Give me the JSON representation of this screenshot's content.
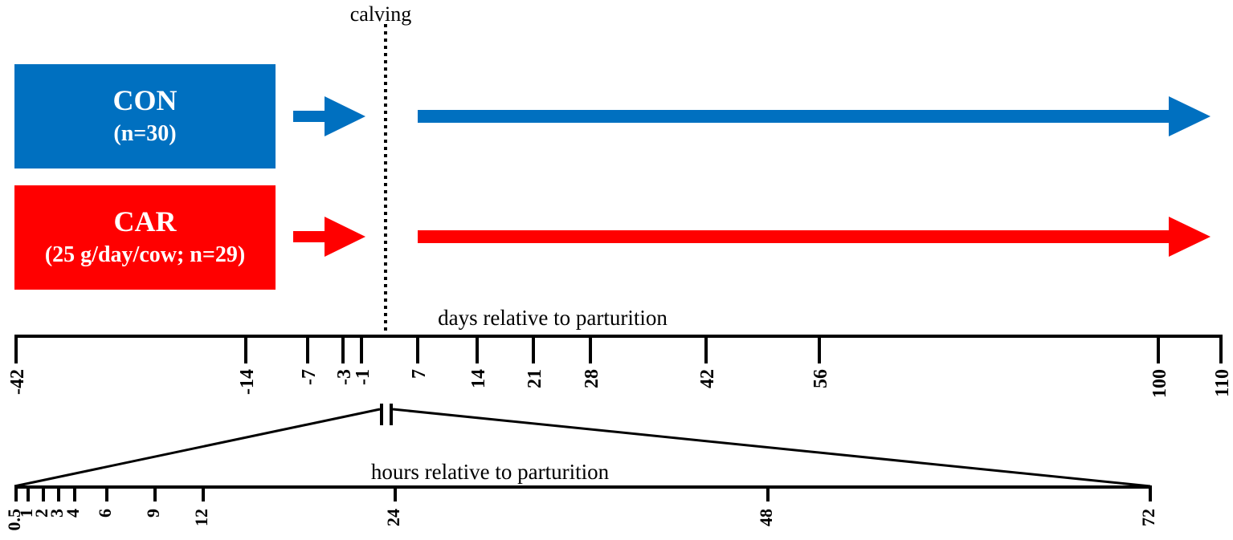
{
  "colors": {
    "con": "#0070c0",
    "car": "#ff0000",
    "line": "#000000"
  },
  "calving_label": "calving",
  "groups": [
    {
      "name": "CON",
      "desc": "(n=30)",
      "color": "#0070c0"
    },
    {
      "name": "CAR",
      "desc": "(25 g/day/cow; n=29)",
      "color": "#ff0000"
    }
  ],
  "days_axis": {
    "label": "days relative to parturition",
    "ticks": [
      "-42",
      "-14",
      "-7",
      "-3",
      "-1",
      "7",
      "14",
      "21",
      "28",
      "42",
      "56",
      "100",
      "110"
    ]
  },
  "hours_axis": {
    "label": "hours relative to parturition",
    "ticks": [
      "0.5",
      "1",
      "2",
      "3",
      "4",
      "6",
      "9",
      "12",
      "24",
      "48",
      "72"
    ]
  }
}
